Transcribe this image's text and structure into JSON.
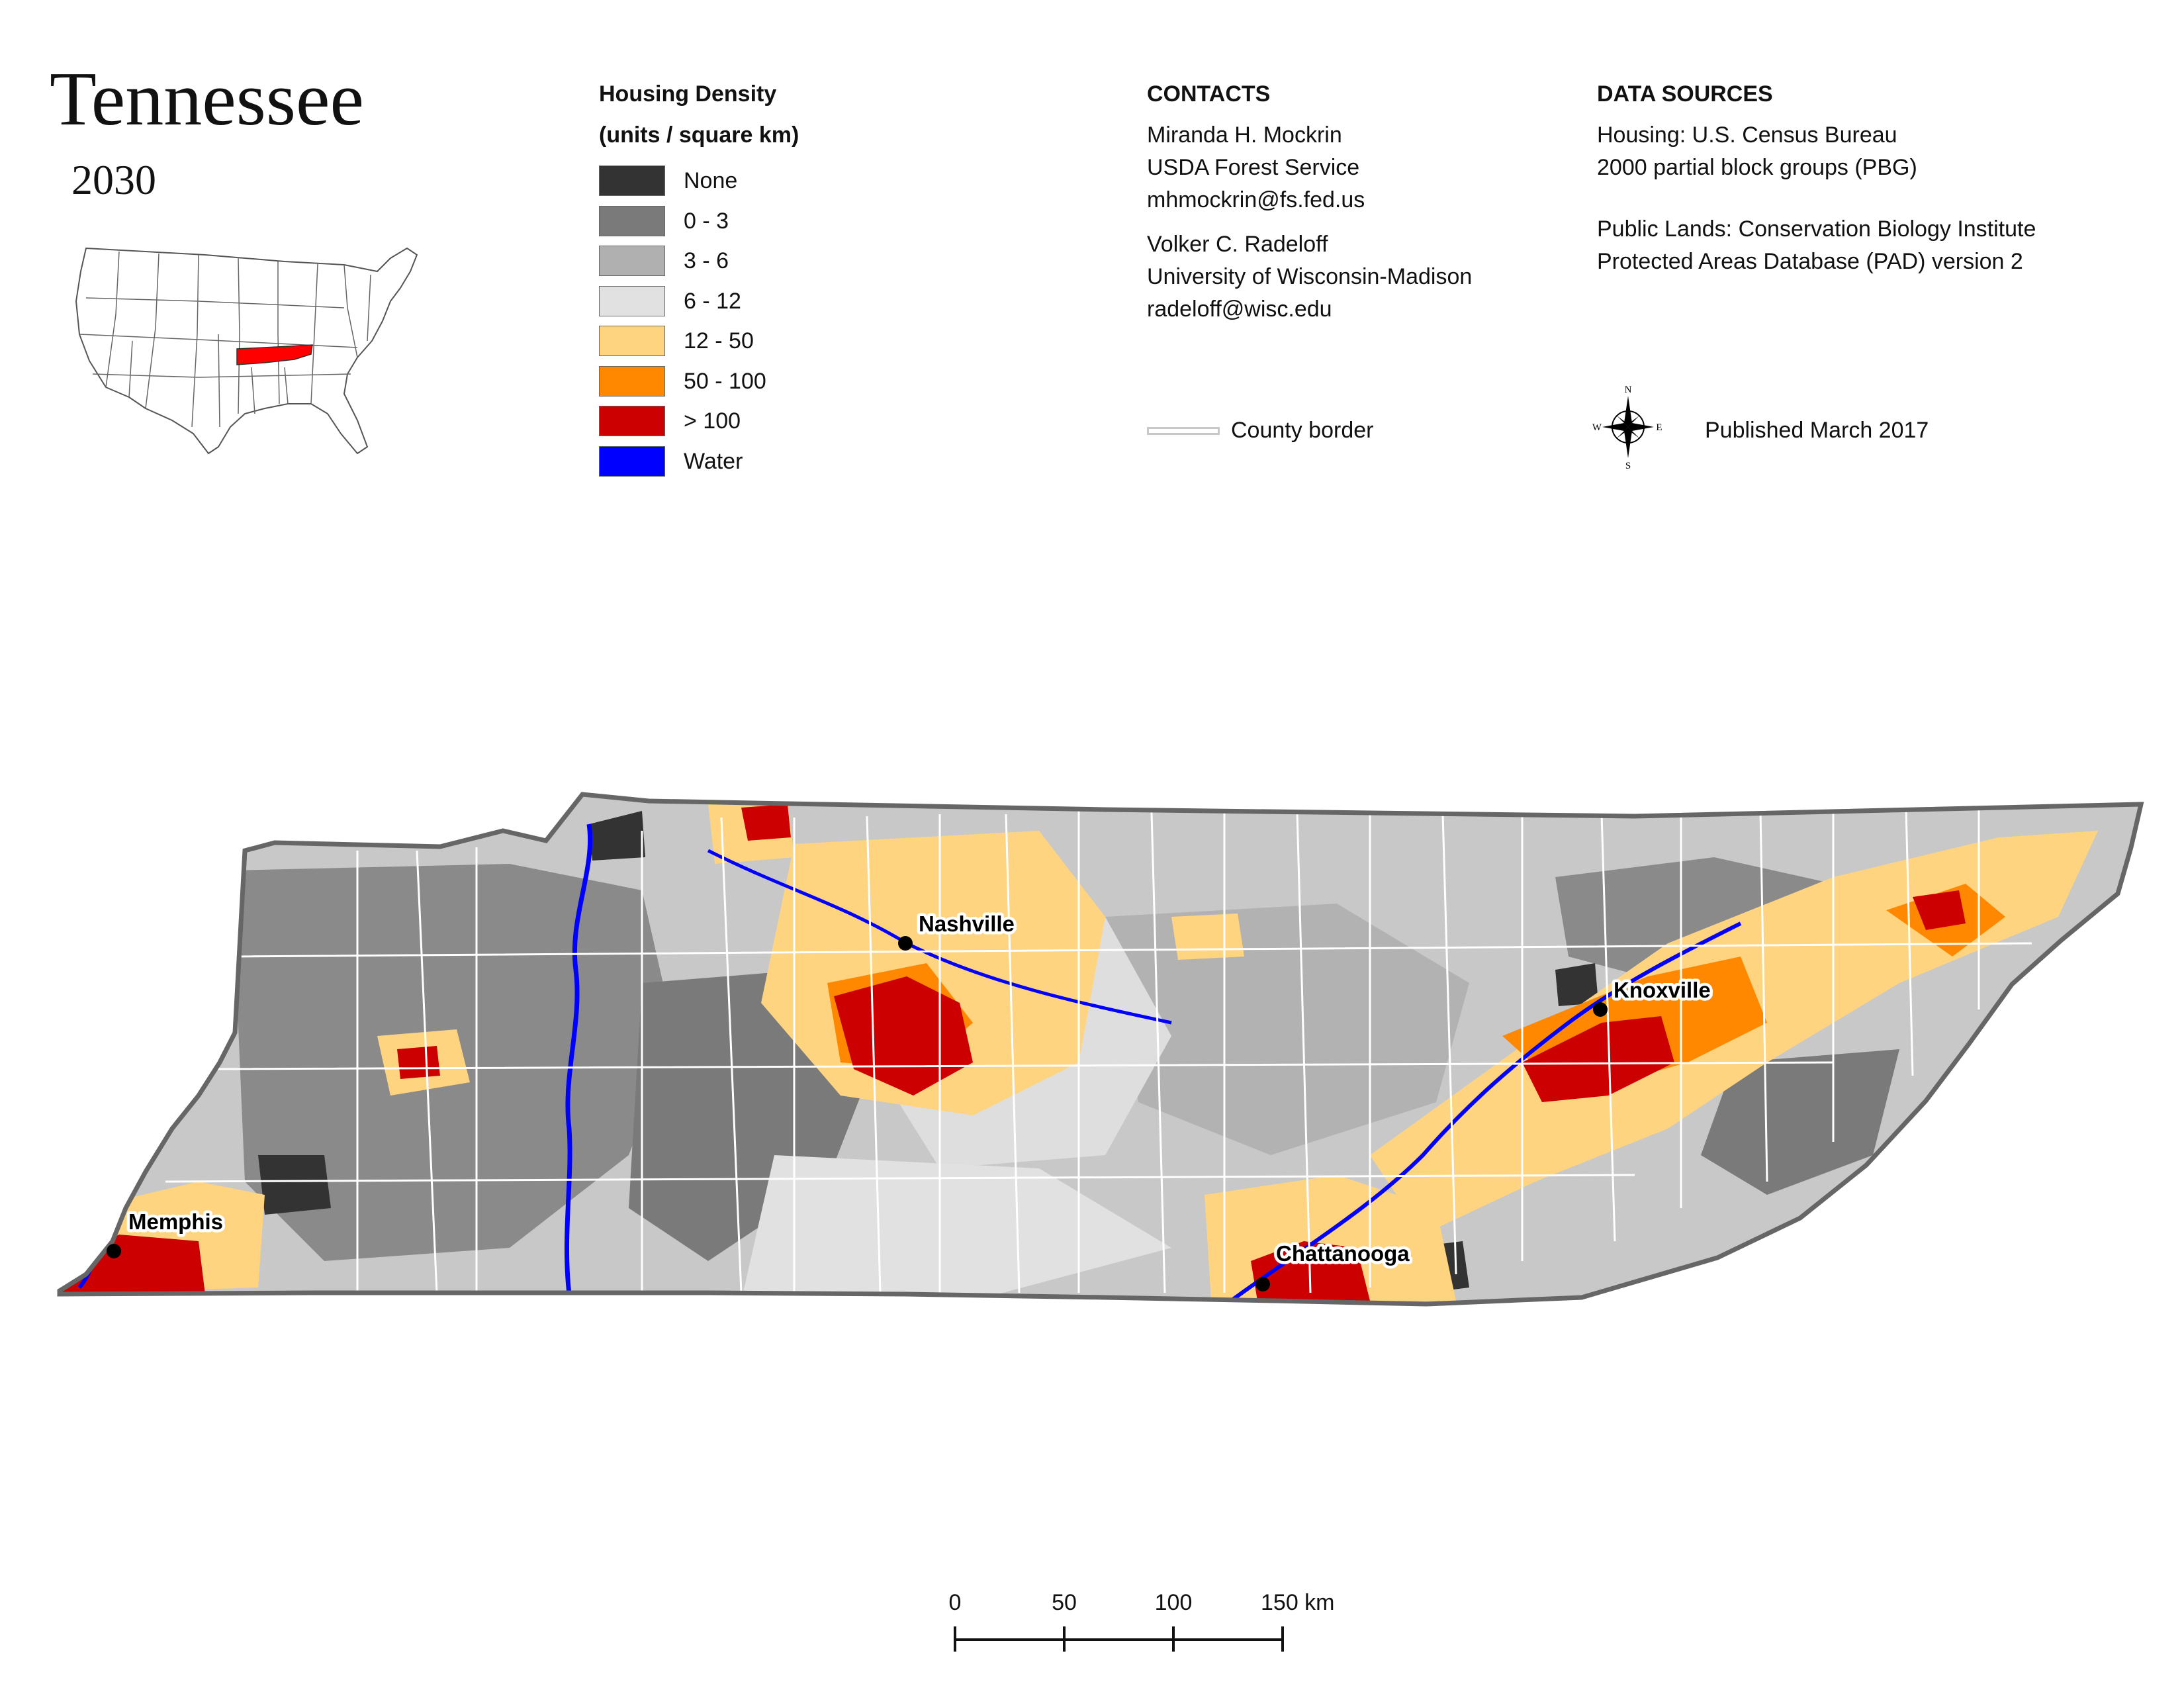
{
  "title": "Tennessee",
  "subtitle": "2030",
  "legend": {
    "title_line1": "Housing Density",
    "title_line2": "(units / square km)",
    "items": [
      {
        "label": "None",
        "color": "#333333"
      },
      {
        "label": "0 - 3",
        "color": "#7a7a7a"
      },
      {
        "label": "3 - 6",
        "color": "#b0b0b0"
      },
      {
        "label": "6 - 12",
        "color": "#e1e1e1"
      },
      {
        "label": "12 - 50",
        "color": "#ffd480"
      },
      {
        "label": "50 - 100",
        "color": "#ff8800"
      },
      {
        "label": "> 100",
        "color": "#cc0000"
      },
      {
        "label": "Water",
        "color": "#0000ff"
      }
    ]
  },
  "contacts": {
    "header": "CONTACTS",
    "person1": {
      "name": "Miranda H. Mockrin",
      "org": "USDA Forest Service",
      "email": "mhmockrin@fs.fed.us"
    },
    "person2": {
      "name": "Volker C. Radeloff",
      "org": "University of Wisconsin-Madison",
      "email": "radeloff@wisc.edu"
    }
  },
  "data_sources": {
    "header": "DATA SOURCES",
    "housing_line1": "Housing: U.S. Census Bureau",
    "housing_line2": "2000 partial block groups (PBG)",
    "lands_line1": "Public Lands: Conservation Biology Institute",
    "lands_line2": "Protected Areas Database (PAD) version 2"
  },
  "county_border_label": "County border",
  "published": "Published March 2017",
  "compass": {
    "n": "N",
    "s": "S",
    "e": "E",
    "w": "W"
  },
  "cities": {
    "nashville": "Nashville",
    "knoxville": "Knoxville",
    "memphis": "Memphis",
    "chattanooga": "Chattanooga"
  },
  "scale": {
    "ticks": [
      "0",
      "50",
      "100",
      "150 km"
    ]
  },
  "inset_highlight_color": "#ff0000"
}
